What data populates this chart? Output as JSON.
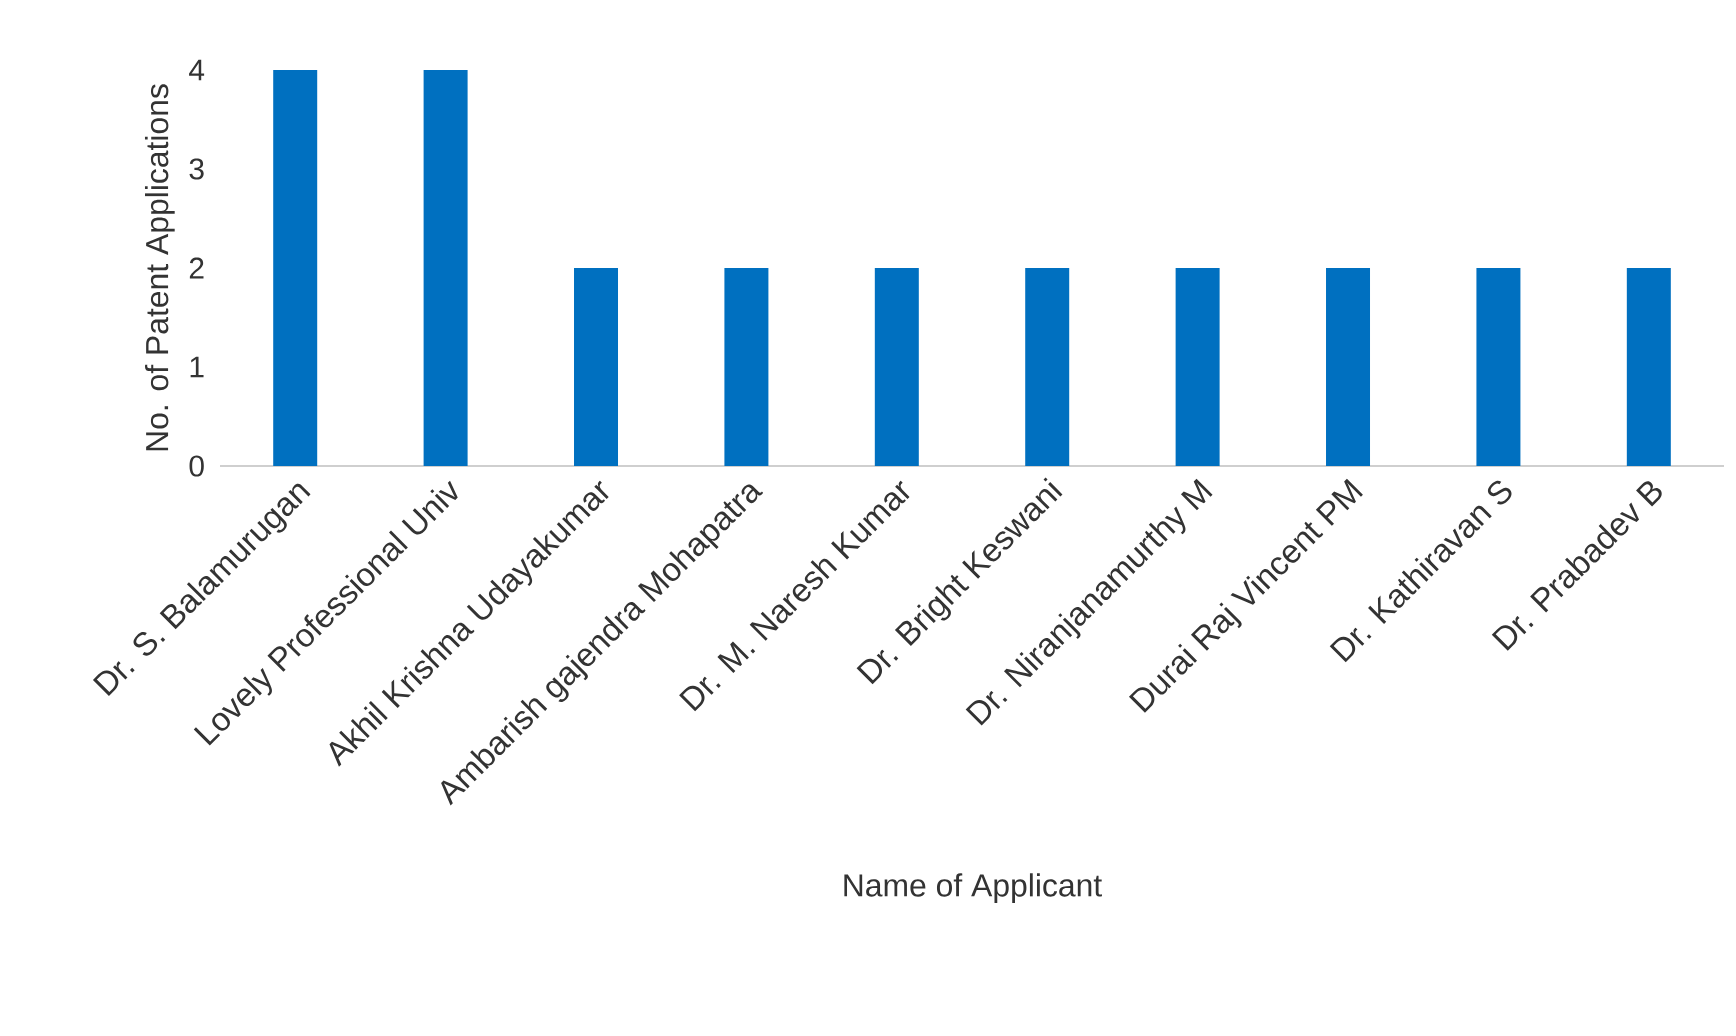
{
  "chart_data": {
    "type": "bar",
    "xlabel": "Name of Applicant",
    "ylabel": "No. of Patent Applications",
    "categories": [
      "Dr. S. Balamurugan",
      "Lovely Professional Univ",
      "Akhil Krishna Udayakumar",
      "Ambarish gajendra Mohapatra",
      "Dr. M. Naresh Kumar",
      "Dr. Bright Keswani",
      "Dr. Niranjanamurthy M",
      "Durai Raj Vincent PM",
      "Dr. Kathiravan S",
      "Dr. Prabadev B"
    ],
    "values": [
      4,
      4,
      2,
      2,
      2,
      2,
      2,
      2,
      2,
      2
    ],
    "color": "#0070c0",
    "ylim": [
      0,
      4
    ],
    "yticks": [
      0,
      1,
      2,
      3,
      4
    ],
    "grid": false
  }
}
